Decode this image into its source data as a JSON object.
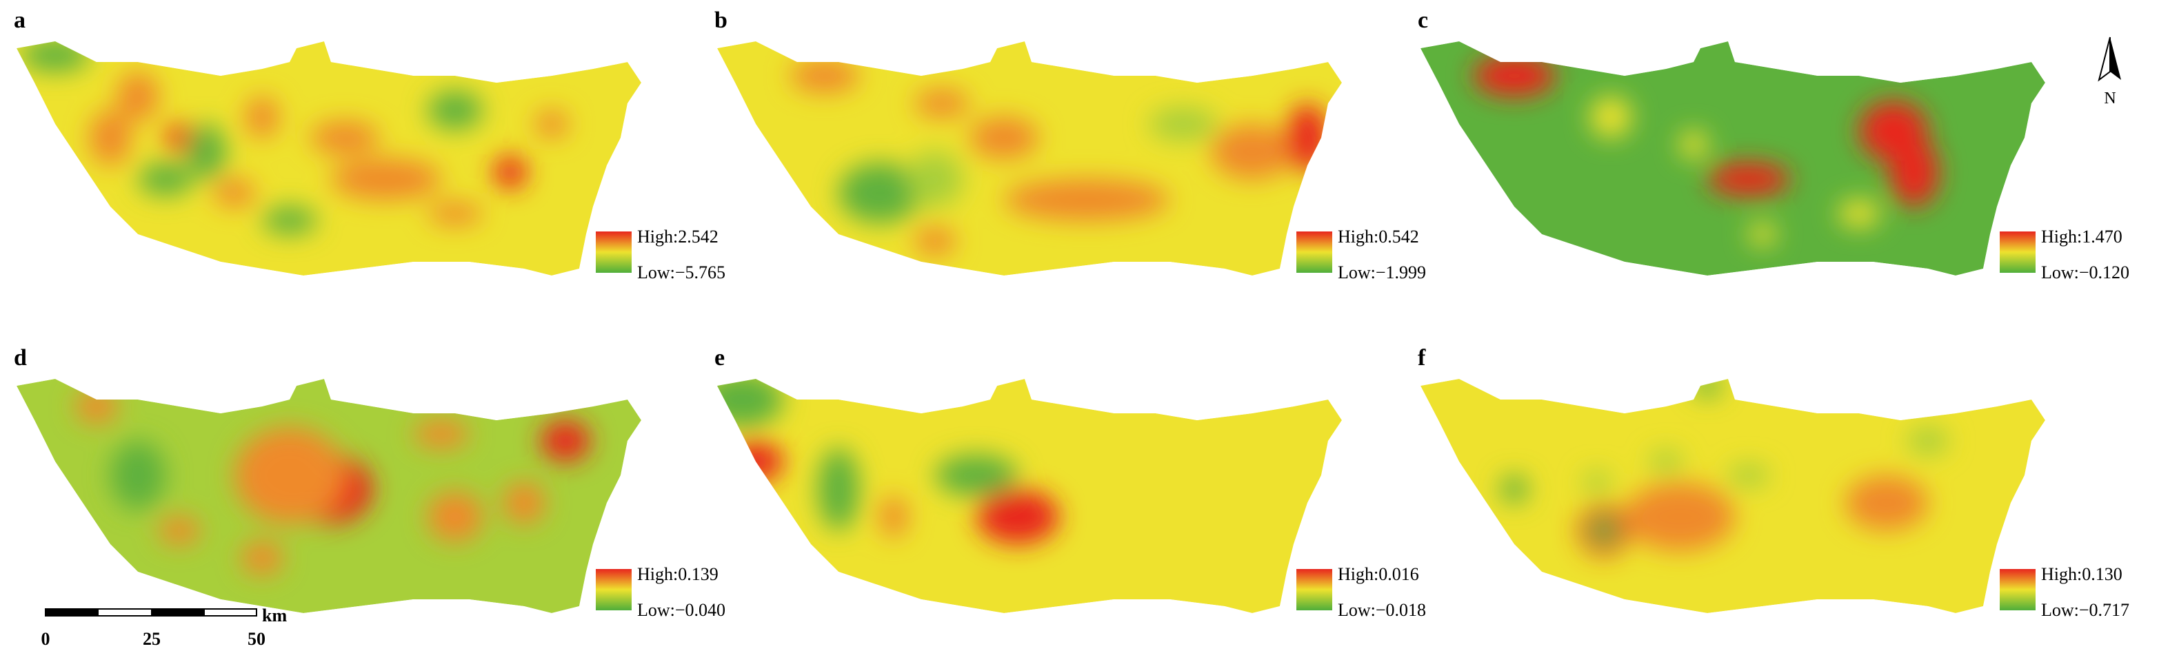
{
  "panels": [
    {
      "label": "a",
      "high": "High:2.542",
      "low": "Low:−5.765"
    },
    {
      "label": "b",
      "high": "High:0.542",
      "low": "Low:−1.999"
    },
    {
      "label": "c",
      "high": "High:1.470",
      "low": "Low:−0.120"
    },
    {
      "label": "d",
      "high": "High:0.139",
      "low": "Low:−0.040"
    },
    {
      "label": "e",
      "high": "High:0.016",
      "low": "Low:−0.018"
    },
    {
      "label": "f",
      "high": "High:0.130",
      "low": "Low:−0.717"
    }
  ],
  "north_arrow": "N",
  "scale_bar": {
    "ticks": [
      "0",
      "25",
      "50"
    ],
    "unit": "km"
  }
}
